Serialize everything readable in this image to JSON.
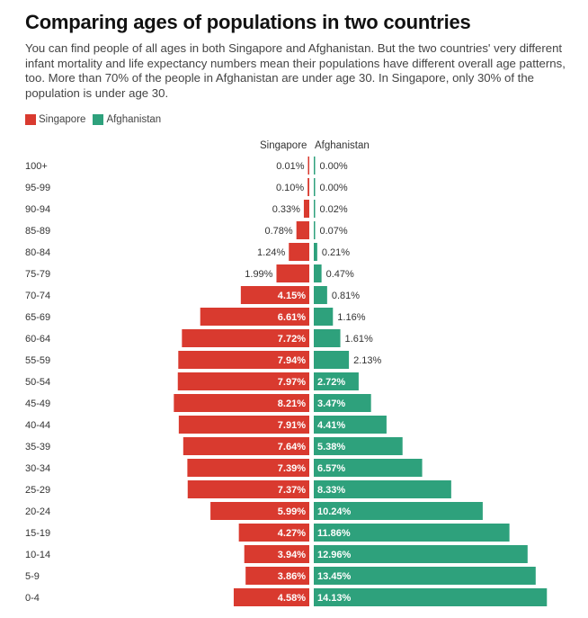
{
  "chart_data": {
    "type": "bar",
    "orientation": "horizontal-population-pyramid",
    "title": "Comparing ages of populations in two countries",
    "description": "You can find people of all ages in both Singapore and Afghanistan. But the two countries' very different infant mortality and life expectancy numbers mean their populations have different overall age patterns, too. More than 70% of the people in Afghanistan are under age 30. In Singapore, only 30% of the population is under age 30.",
    "xlabel": "",
    "ylabel": "",
    "legend_position": "top-left",
    "categories": [
      "100+",
      "95-99",
      "90-94",
      "85-89",
      "80-84",
      "75-79",
      "70-74",
      "65-69",
      "60-64",
      "55-59",
      "50-54",
      "45-49",
      "40-44",
      "35-39",
      "30-34",
      "25-29",
      "20-24",
      "15-19",
      "10-14",
      "5-9",
      "0-4"
    ],
    "series": [
      {
        "name": "Singapore",
        "color": "#d93a2f",
        "direction": "left",
        "values": [
          0.01,
          0.1,
          0.33,
          0.78,
          1.24,
          1.99,
          4.15,
          6.61,
          7.72,
          7.94,
          7.97,
          8.21,
          7.91,
          7.64,
          7.39,
          7.37,
          5.99,
          4.27,
          3.94,
          3.86,
          4.58
        ]
      },
      {
        "name": "Afghanistan",
        "color": "#2ea17c",
        "direction": "right",
        "values": [
          0.0,
          0.0,
          0.02,
          0.07,
          0.21,
          0.47,
          0.81,
          1.16,
          1.61,
          2.13,
          2.72,
          3.47,
          4.41,
          5.38,
          6.57,
          8.33,
          10.24,
          11.86,
          12.96,
          13.45,
          14.13
        ]
      }
    ],
    "value_suffix": "%",
    "xlim": [
      0,
      15
    ],
    "grid": false
  },
  "header": {
    "title": "Comparing ages of populations in two countries",
    "description": "You can find people of all ages in both Singapore and Afghanistan. But the two countries' very different infant mortality and life expectancy numbers mean their populations have different overall age patterns, too. More than 70% of the people in Afghanistan are under age 30. In Singapore, only 30% of the population is under age 30."
  },
  "legend": [
    {
      "label": "Singapore",
      "color": "#d93a2f"
    },
    {
      "label": "Afghanistan",
      "color": "#2ea17c"
    }
  ],
  "columns": {
    "left": "Singapore",
    "right": "Afghanistan"
  }
}
